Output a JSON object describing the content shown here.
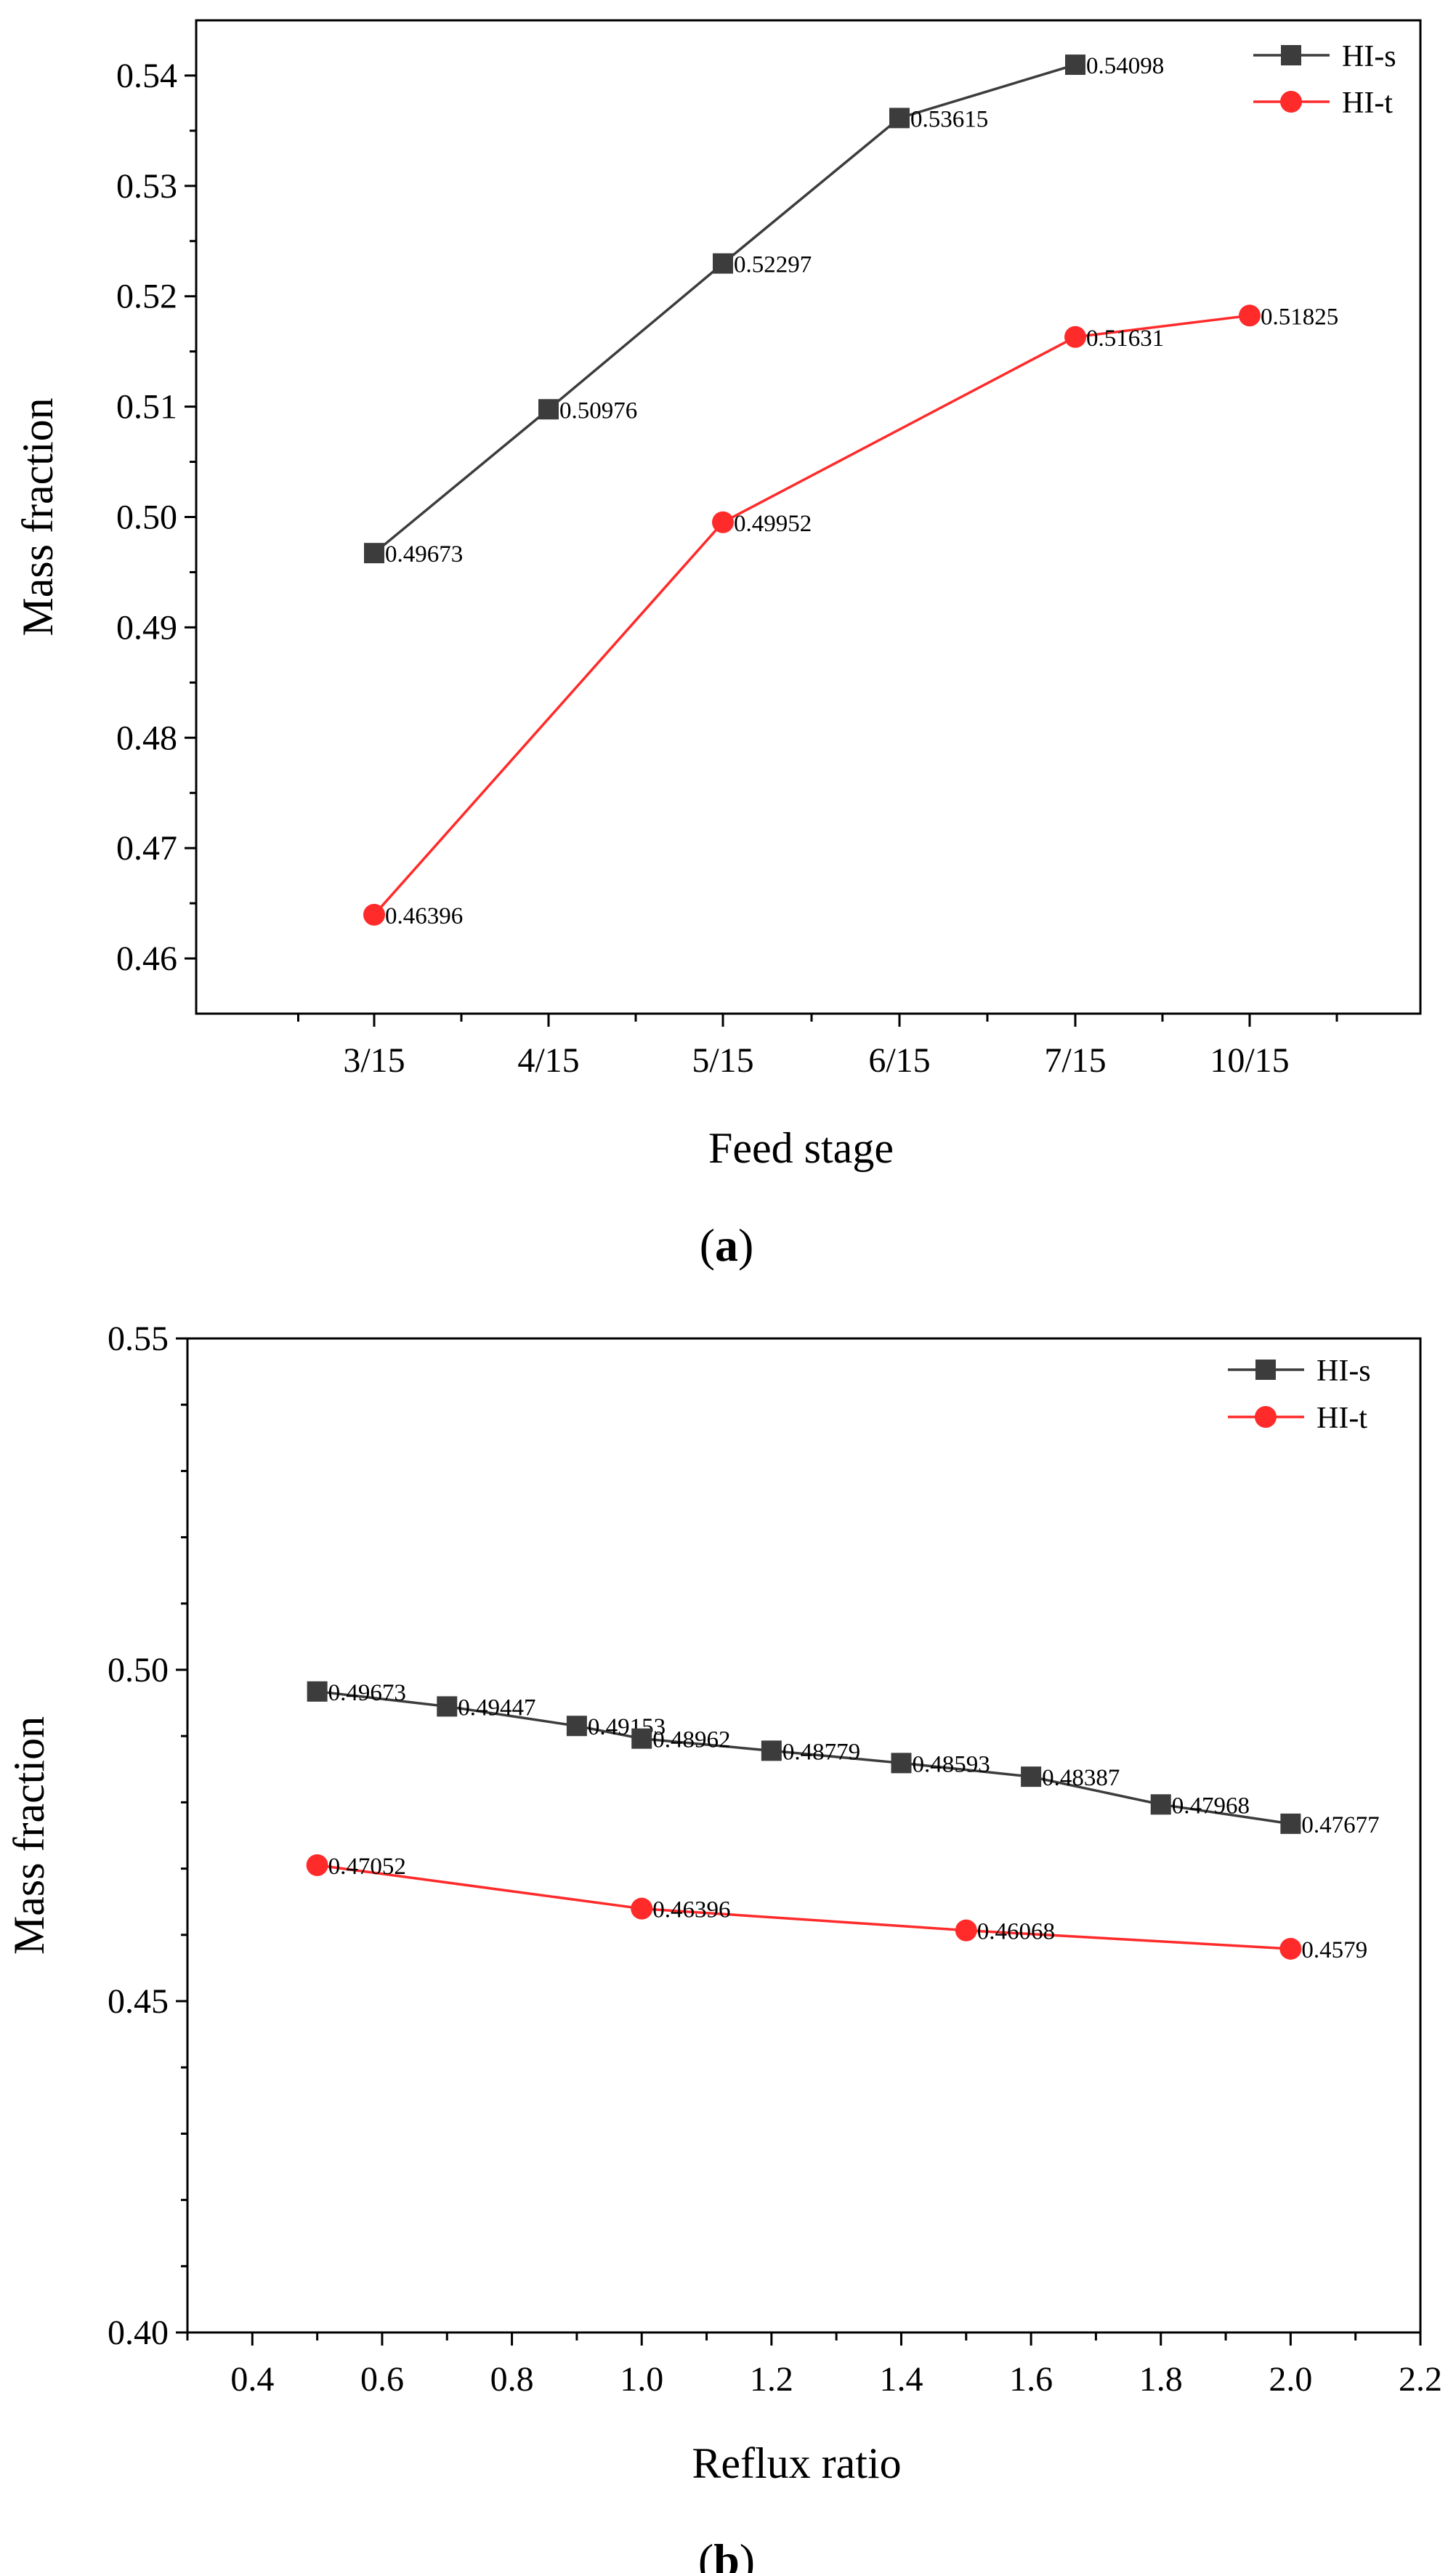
{
  "chart_data": [
    {
      "type": "line",
      "caption_letter": "a",
      "caption_open": "(",
      "caption_close": ")",
      "xlabel": "Feed stage",
      "ylabel": "Mass fraction",
      "categories": [
        "3/15",
        "4/15",
        "5/15",
        "6/15",
        "7/15",
        "10/15"
      ],
      "ylim": [
        0.455,
        0.545
      ],
      "yticks": [
        "0.46",
        "0.47",
        "0.48",
        "0.49",
        "0.50",
        "0.51",
        "0.52",
        "0.53",
        "0.54"
      ],
      "legend_position": "top-right",
      "series": [
        {
          "name": "HI-s",
          "color": "#3c3c3c",
          "marker": "square",
          "points": [
            {
              "x": "3/15",
              "y": 0.49673,
              "label": "0.49673"
            },
            {
              "x": "4/15",
              "y": 0.50976,
              "label": "0.50976"
            },
            {
              "x": "5/15",
              "y": 0.52297,
              "label": "0.52297"
            },
            {
              "x": "6/15",
              "y": 0.53615,
              "label": "0.53615"
            },
            {
              "x": "7/15",
              "y": 0.54098,
              "label": "0.54098"
            }
          ]
        },
        {
          "name": "HI-t",
          "color": "#ff2a2a",
          "marker": "circle",
          "points": [
            {
              "x": "3/15",
              "y": 0.46396,
              "label": "0.46396"
            },
            {
              "x": "5/15",
              "y": 0.49952,
              "label": "0.49952"
            },
            {
              "x": "7/15",
              "y": 0.51631,
              "label": "0.51631"
            },
            {
              "x": "10/15",
              "y": 0.51825,
              "label": "0.51825"
            }
          ]
        }
      ]
    },
    {
      "type": "line",
      "caption_letter": "b",
      "caption_open": "(",
      "caption_close": ")",
      "xlabel": "Reflux ratio",
      "ylabel": "Mass fraction",
      "xlim": [
        0.3,
        2.2
      ],
      "xticks": [
        "0.4",
        "0.6",
        "0.8",
        "1.0",
        "1.2",
        "1.4",
        "1.6",
        "1.8",
        "2.0",
        "2.2"
      ],
      "ylim": [
        0.4,
        0.55
      ],
      "yticks": [
        "0.40",
        "0.45",
        "0.50",
        "0.55"
      ],
      "legend_position": "top-right",
      "series": [
        {
          "name": "HI-s",
          "color": "#3c3c3c",
          "marker": "square",
          "points": [
            {
              "x": 0.5,
              "y": 0.49673,
              "label": "0.49673"
            },
            {
              "x": 0.7,
              "y": 0.49447,
              "label": "0.49447"
            },
            {
              "x": 0.9,
              "y": 0.49153,
              "label": "0.49153"
            },
            {
              "x": 1.0,
              "y": 0.48962,
              "label": "0.48962"
            },
            {
              "x": 1.2,
              "y": 0.48779,
              "label": "0.48779"
            },
            {
              "x": 1.4,
              "y": 0.48593,
              "label": "0.48593"
            },
            {
              "x": 1.6,
              "y": 0.48387,
              "label": "0.48387"
            },
            {
              "x": 1.8,
              "y": 0.47968,
              "label": "0.47968"
            },
            {
              "x": 2.0,
              "y": 0.47677,
              "label": "0.47677"
            }
          ]
        },
        {
          "name": "HI-t",
          "color": "#ff2a2a",
          "marker": "circle",
          "points": [
            {
              "x": 0.5,
              "y": 0.47052,
              "label": "0.47052"
            },
            {
              "x": 1.0,
              "y": 0.46396,
              "label": "0.46396"
            },
            {
              "x": 1.5,
              "y": 0.46068,
              "label": "0.46068"
            },
            {
              "x": 2.0,
              "y": 0.4579,
              "label": "0.4579"
            }
          ]
        }
      ]
    }
  ]
}
